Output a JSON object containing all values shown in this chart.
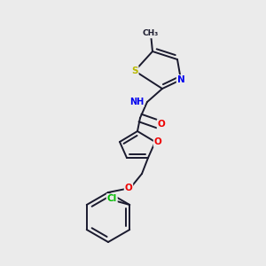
{
  "background_color": "#ebebeb",
  "bond_color": "#1a1a2e",
  "atom_colors": {
    "S": "#b8b800",
    "N": "#0000ee",
    "O": "#ee0000",
    "Cl": "#00bb00",
    "C": "#1a1a2e",
    "H": "#555577"
  },
  "figsize": [
    3.0,
    3.0
  ],
  "dpi": 100,
  "lw": 1.4,
  "fs": 7.0
}
